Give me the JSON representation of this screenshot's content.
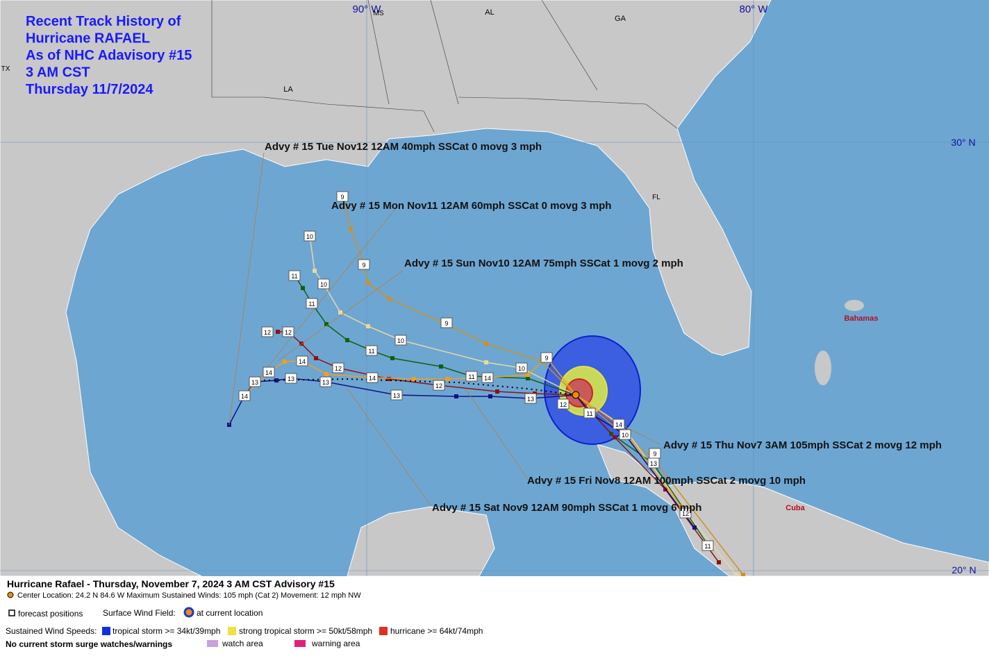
{
  "title": [
    "Recent Track History of",
    "Hurricane RAFAEL",
    "As of NHC Adavisory #15",
    "3 AM CST",
    "Thursday 11/7/2024"
  ],
  "map_labels": [
    "90° W",
    "MS",
    "AL",
    "GA",
    "80° W",
    "TX",
    "LA",
    "FL",
    "30° N",
    "Bahamas",
    "Cuba",
    "20° N"
  ],
  "advisories": [
    "Advy # 15 Tue Nov12 12AM  40mph SSCat 0 movg 3 mph",
    "Advy # 15 Mon Nov11 12AM  60mph SSCat 0 movg 3 mph",
    "Advy # 15 Sun Nov10 12AM  75mph SSCat 1 movg 2 mph",
    "Advy # 15 Thu Nov7 3AM  105mph SSCat 2 movg 12 mph",
    "Advy # 15 Fri Nov8 12AM  100mph SSCat 2 movg 10 mph",
    "Advy # 15 Sat Nov9 12AM  90mph SSCat 1 movg 6 mph"
  ],
  "track_labels": [
    "9",
    "10",
    "9",
    "11",
    "10",
    "11",
    "9",
    "10",
    "11",
    "12",
    "12",
    "14",
    "12",
    "14",
    "13",
    "13",
    "13",
    "14",
    "12",
    "13",
    "11",
    "14",
    "10",
    "9",
    "13",
    "12",
    "11",
    "14",
    "10",
    "9",
    "13",
    "12",
    "11",
    "14"
  ],
  "footer": {
    "headline": "Hurricane Rafael  -  Thursday, November 7, 2024  3 AM CST   Advisory #15",
    "center": "Center Location: 24.2 N  84.6 W   Maximum Sustained Winds: 105 mph (Cat 2) Movement: 12 mph NW",
    "forecast": "forecast positions",
    "wind_field": "Surface Wind Field:",
    "current": "at current location",
    "speeds": "Sustained Wind Speeds:",
    "ts": "tropical storm >= 34kt/39mph",
    "sts": "strong tropical storm >= 50kt/58mph",
    "hu": "hurricane >= 64kt/74mph",
    "surge": "No current storm surge watches/warnings",
    "watch": "watch area",
    "warning": "warning area"
  }
}
